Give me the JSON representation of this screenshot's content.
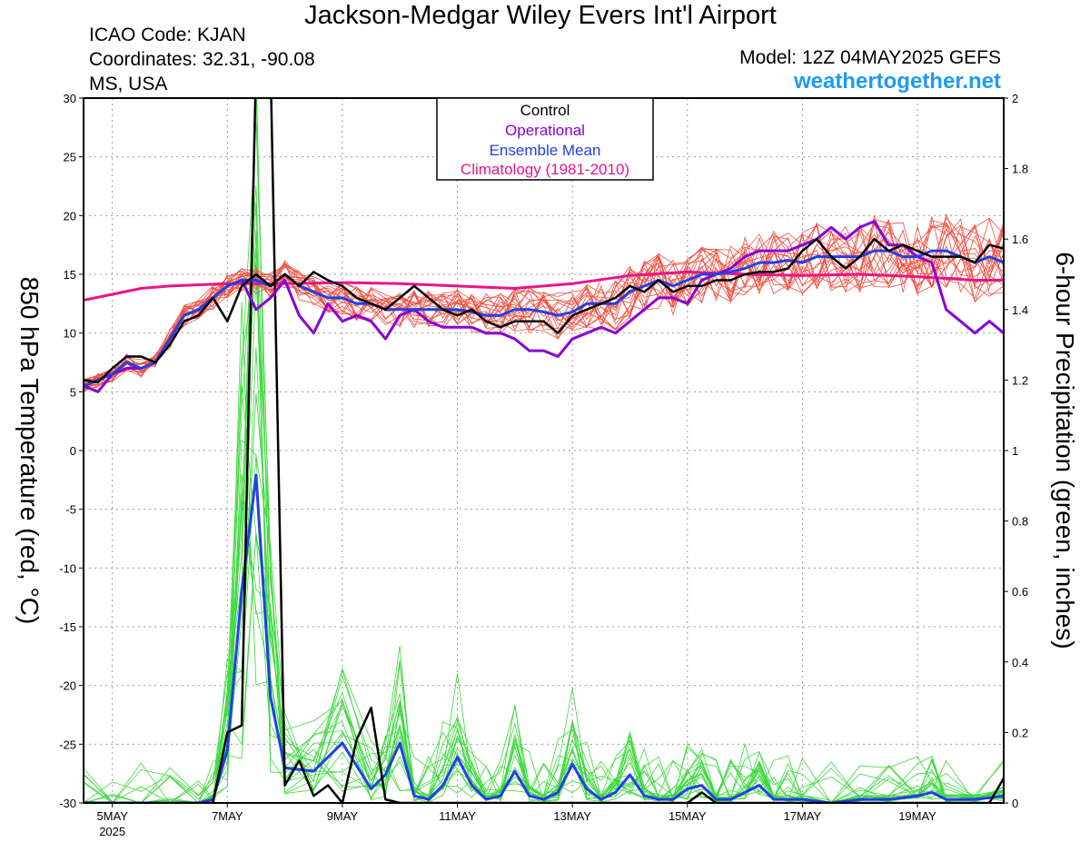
{
  "title": "Jackson-Medgar Wiley Evers Int'l Airport",
  "info": {
    "icao": "ICAO Code: KJAN",
    "coordinates": "Coordinates: 32.31, -90.08",
    "location": "MS, USA"
  },
  "model": "Model: 12Z 04MAY2025 GEFS",
  "site": "weathertogether.net",
  "colors": {
    "control": "#000000",
    "operational": "#8a00d4",
    "ensemble_mean": "#2040e8",
    "climatology": "#e8148c",
    "members_temp": "#f05040",
    "members_precip": "#3cd83c",
    "site": "#1e9bf0"
  },
  "chart_data": {
    "type": "line",
    "legend": {
      "placement": "top-center",
      "entries": [
        "Control",
        "Operational",
        "Ensemble Mean",
        "Climatology (1981-2010)"
      ]
    },
    "y_left": {
      "label": "850 hPa Temperature (red, °C)",
      "range": [
        -30,
        30
      ],
      "ticks": [
        30,
        25,
        20,
        15,
        10,
        5,
        0,
        -5,
        -10,
        -15,
        -20,
        -25,
        -30
      ]
    },
    "y_right": {
      "label": "6-hour Precipitation (green, inches)",
      "range": [
        0,
        2
      ],
      "ticks": [
        2,
        1.8,
        1.6,
        1.4,
        1.2,
        1,
        0.8,
        0.6,
        0.4,
        0.2,
        0
      ]
    },
    "x": {
      "range_days": [
        4.5,
        20.5
      ],
      "ticks": [
        {
          "day": 5,
          "label": "5MAY",
          "sub": "2025"
        },
        {
          "day": 7,
          "label": "7MAY",
          "sub": ""
        },
        {
          "day": 9,
          "label": "9MAY",
          "sub": ""
        },
        {
          "day": 11,
          "label": "11MAY",
          "sub": ""
        },
        {
          "day": 13,
          "label": "13MAY",
          "sub": ""
        },
        {
          "day": 15,
          "label": "15MAY",
          "sub": ""
        },
        {
          "day": 17,
          "label": "17MAY",
          "sub": ""
        },
        {
          "day": 19,
          "label": "19MAY",
          "sub": ""
        }
      ]
    },
    "grid": true,
    "series": [
      {
        "name": "Control",
        "axis": "left",
        "x": [
          4.5,
          4.75,
          5.0,
          5.25,
          5.5,
          5.75,
          6.0,
          6.25,
          6.5,
          6.75,
          7.0,
          7.25,
          7.5,
          7.75,
          8.0,
          8.25,
          8.5,
          8.75,
          9.0,
          9.25,
          9.5,
          9.75,
          10.0,
          10.25,
          10.5,
          10.75,
          11.0,
          11.25,
          11.5,
          11.75,
          12.0,
          12.25,
          12.5,
          12.75,
          13.0,
          13.25,
          13.5,
          13.75,
          14.0,
          14.25,
          14.5,
          14.75,
          15.0,
          15.25,
          15.5,
          15.75,
          16.0,
          16.25,
          16.5,
          16.75,
          17.0,
          17.25,
          17.5,
          17.75,
          18.0,
          18.25,
          18.5,
          18.75,
          19.0,
          19.25,
          19.5,
          19.75,
          20.0,
          20.25,
          20.5
        ],
        "values": [
          6.0,
          5.8,
          7.0,
          8.0,
          8.0,
          7.5,
          9.0,
          11.0,
          11.5,
          13.0,
          11.0,
          14.0,
          15.0,
          14.0,
          15.0,
          14.0,
          15.2,
          14.5,
          14.0,
          13.0,
          12.5,
          12.0,
          13.0,
          14.0,
          13.0,
          12.0,
          11.5,
          12.0,
          11.0,
          10.5,
          11.0,
          11.0,
          11.0,
          10.0,
          11.5,
          12.0,
          12.5,
          13.0,
          14.0,
          13.5,
          14.5,
          13.5,
          14.0,
          14.0,
          14.5,
          14.5,
          15.0,
          15.2,
          15.2,
          15.5,
          17.0,
          18.0,
          16.5,
          15.5,
          16.5,
          18.0,
          17.0,
          17.5,
          17.0,
          16.5,
          16.5,
          16.5,
          16.0,
          17.5,
          17.2
        ]
      },
      {
        "name": "Operational",
        "axis": "left",
        "x": [
          4.5,
          4.75,
          5.0,
          5.25,
          5.5,
          5.75,
          6.0,
          6.25,
          6.5,
          6.75,
          7.0,
          7.25,
          7.5,
          7.75,
          8.0,
          8.25,
          8.5,
          8.75,
          9.0,
          9.25,
          9.5,
          9.75,
          10.0,
          10.25,
          10.5,
          10.75,
          11.0,
          11.25,
          11.5,
          11.75,
          12.0,
          12.25,
          12.5,
          12.75,
          13.0,
          13.25,
          13.5,
          13.75,
          14.0,
          14.25,
          14.5,
          14.75,
          15.0,
          15.25,
          15.5,
          15.75,
          16.0,
          16.25,
          16.5,
          16.75,
          17.0,
          17.25,
          17.5,
          17.75,
          18.0,
          18.25,
          18.5,
          18.75,
          19.0,
          19.25,
          19.5,
          19.75,
          20.0,
          20.25,
          20.5
        ],
        "values": [
          5.5,
          5.0,
          6.5,
          7.0,
          7.0,
          7.5,
          9.5,
          11.5,
          12.0,
          13.0,
          14.0,
          14.5,
          12.0,
          13.0,
          14.5,
          11.5,
          10.0,
          12.5,
          11.0,
          11.5,
          11.0,
          9.5,
          11.5,
          12.0,
          11.0,
          10.5,
          10.5,
          10.5,
          10.0,
          10.0,
          9.5,
          8.5,
          8.5,
          8.0,
          9.5,
          10.0,
          10.5,
          10.0,
          11.0,
          12.0,
          13.0,
          13.0,
          12.5,
          14.5,
          15.0,
          15.5,
          16.5,
          17.0,
          17.0,
          17.0,
          17.5,
          18.0,
          19.0,
          18.0,
          19.0,
          19.5,
          17.5,
          17.5,
          16.5,
          16.0,
          12.0,
          11.0,
          10.0,
          11.0,
          10.0
        ]
      },
      {
        "name": "Ensemble Mean",
        "axis": "left",
        "x": [
          4.5,
          4.75,
          5.0,
          5.25,
          5.5,
          5.75,
          6.0,
          6.25,
          6.5,
          6.75,
          7.0,
          7.25,
          7.5,
          7.75,
          8.0,
          8.25,
          8.5,
          8.75,
          9.0,
          9.25,
          9.5,
          9.75,
          10.0,
          10.25,
          10.5,
          10.75,
          11.0,
          11.25,
          11.5,
          11.75,
          12.0,
          12.25,
          12.5,
          12.75,
          13.0,
          13.25,
          13.5,
          13.75,
          14.0,
          14.25,
          14.5,
          14.75,
          15.0,
          15.25,
          15.5,
          15.75,
          16.0,
          16.25,
          16.5,
          16.75,
          17.0,
          17.25,
          17.5,
          17.75,
          18.0,
          18.25,
          18.5,
          18.75,
          19.0,
          19.25,
          19.5,
          19.75,
          20.0,
          20.25,
          20.5
        ],
        "values": [
          5.5,
          6.0,
          6.5,
          7.5,
          7.0,
          7.5,
          9.5,
          11.5,
          12.0,
          13.0,
          14.0,
          14.5,
          14.5,
          14.0,
          15.0,
          14.0,
          13.5,
          13.0,
          13.0,
          12.5,
          12.5,
          12.0,
          12.0,
          12.0,
          12.0,
          12.0,
          12.0,
          11.8,
          11.5,
          11.5,
          12.0,
          12.0,
          11.8,
          11.5,
          11.8,
          12.5,
          12.5,
          12.5,
          13.5,
          14.0,
          14.5,
          14.0,
          14.5,
          15.0,
          15.0,
          15.2,
          15.5,
          16.0,
          16.0,
          16.2,
          16.0,
          16.5,
          16.5,
          16.5,
          16.5,
          17.0,
          17.0,
          16.5,
          16.5,
          17.0,
          17.0,
          16.5,
          16.0,
          16.5,
          16.0
        ]
      },
      {
        "name": "Climatology (1981-2010)",
        "axis": "left",
        "x": [
          4.5,
          5.0,
          5.5,
          6.0,
          7.0,
          8.0,
          9.0,
          10.0,
          11.0,
          12.0,
          13.0,
          14.0,
          15.0,
          16.0,
          17.0,
          18.0,
          19.0,
          20.0,
          20.5
        ],
        "values": [
          12.8,
          13.3,
          13.8,
          14.0,
          14.2,
          14.2,
          14.3,
          14.2,
          14.0,
          13.8,
          14.2,
          14.9,
          15.2,
          15.0,
          14.9,
          15.0,
          14.8,
          14.5,
          14.5
        ]
      },
      {
        "name": "Ensemble Mean",
        "axis": "right",
        "x": [
          4.5,
          5.0,
          5.5,
          6.0,
          6.5,
          6.75,
          7.0,
          7.25,
          7.5,
          7.75,
          8.0,
          8.5,
          9.0,
          9.5,
          9.75,
          10.0,
          10.25,
          10.5,
          10.75,
          11.0,
          11.25,
          11.5,
          11.75,
          12.0,
          12.25,
          12.5,
          12.75,
          13.0,
          13.25,
          13.5,
          13.75,
          14.0,
          14.25,
          14.5,
          14.75,
          15.0,
          15.25,
          15.5,
          15.75,
          16.0,
          16.25,
          16.5,
          16.75,
          17.0,
          17.5,
          18.0,
          18.5,
          19.0,
          19.25,
          19.5,
          20.0,
          20.5
        ],
        "values": [
          0,
          0,
          0,
          0,
          0,
          0.01,
          0.15,
          0.6,
          0.93,
          0.3,
          0.1,
          0.09,
          0.17,
          0.04,
          0.08,
          0.17,
          0.02,
          0.01,
          0.05,
          0.13,
          0.05,
          0.01,
          0.02,
          0.09,
          0.02,
          0.01,
          0.03,
          0.11,
          0.04,
          0.01,
          0.03,
          0.08,
          0.02,
          0.01,
          0.01,
          0.04,
          0.05,
          0.01,
          0.01,
          0.03,
          0.05,
          0.01,
          0.01,
          0.01,
          0.0,
          0.01,
          0.01,
          0.02,
          0.03,
          0.01,
          0.01,
          0.02
        ]
      },
      {
        "name": "Control",
        "axis": "right",
        "x": [
          4.5,
          5.0,
          5.5,
          6.0,
          6.5,
          6.75,
          7.0,
          7.25,
          7.5,
          7.75,
          8.0,
          8.25,
          8.5,
          8.75,
          9.0,
          9.25,
          9.5,
          9.75,
          10.0,
          10.5,
          11.0,
          11.5,
          12.0,
          12.5,
          13.0,
          13.5,
          14.0,
          14.5,
          15.0,
          15.25,
          15.5,
          16.0,
          16.5,
          17.0,
          17.5,
          18.0,
          18.5,
          19.0,
          19.5,
          20.0,
          20.25,
          20.5
        ],
        "values": [
          0,
          0,
          0,
          0,
          0,
          0.0,
          0.2,
          0.22,
          2.1,
          2.1,
          0.05,
          0.12,
          0.02,
          0.05,
          0.0,
          0.18,
          0.27,
          0.01,
          0.0,
          0.0,
          0.0,
          0.0,
          0.0,
          0.0,
          0.0,
          0.0,
          0.0,
          0.0,
          0.0,
          0.03,
          0.0,
          0.0,
          0.0,
          0.0,
          0.0,
          0.0,
          0.0,
          0.0,
          0.0,
          0.0,
          0.0,
          0.07
        ]
      }
    ]
  }
}
